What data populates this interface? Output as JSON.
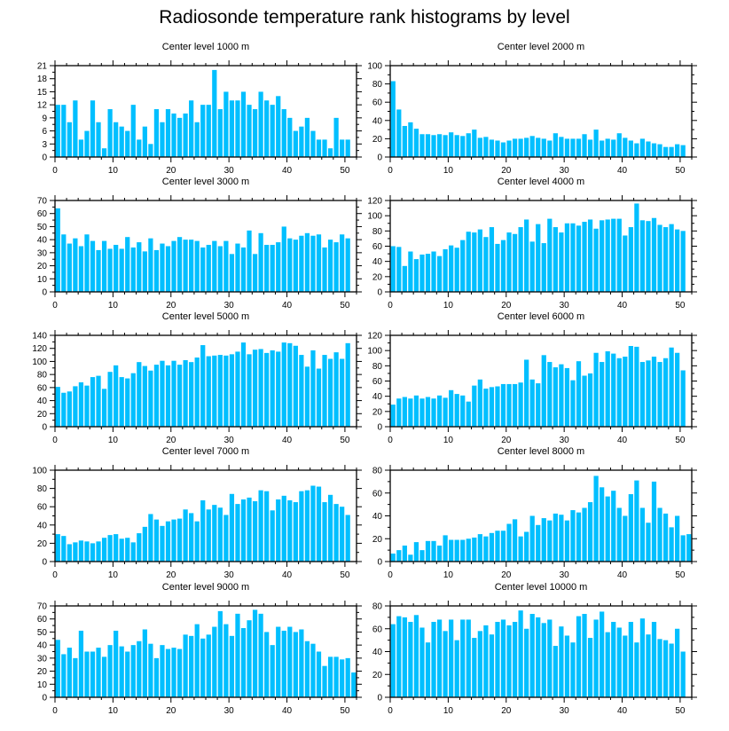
{
  "title": "Radiosonde temperature rank histograms by level",
  "bar_color": "#00bfff",
  "chart_data": [
    {
      "type": "bar",
      "title": "Center level 1000 m",
      "xlim": [
        0,
        52
      ],
      "ylim": [
        0,
        21
      ],
      "xticks": [
        0,
        10,
        20,
        30,
        40,
        50
      ],
      "yticks": [
        0,
        3,
        6,
        9,
        12,
        15,
        18,
        21
      ],
      "values": [
        12,
        12,
        8,
        13,
        4,
        6,
        13,
        8,
        2,
        11,
        8,
        7,
        6,
        12,
        4,
        7,
        3,
        11,
        8,
        11,
        10,
        9,
        10,
        13,
        8,
        12,
        12,
        20,
        11,
        15,
        13,
        13,
        15,
        12,
        11,
        15,
        13,
        12,
        14,
        11,
        9,
        6,
        7,
        9,
        6,
        4,
        4,
        2,
        9,
        4,
        4
      ]
    },
    {
      "type": "bar",
      "title": "Center level 2000 m",
      "xlim": [
        0,
        52
      ],
      "ylim": [
        0,
        100
      ],
      "xticks": [
        0,
        10,
        20,
        30,
        40,
        50
      ],
      "yticks": [
        0,
        20,
        40,
        60,
        80,
        100
      ],
      "values": [
        83,
        52,
        34,
        38,
        31,
        25,
        25,
        24,
        25,
        24,
        27,
        24,
        23,
        26,
        30,
        21,
        22,
        19,
        18,
        16,
        18,
        20,
        20,
        21,
        23,
        21,
        20,
        18,
        26,
        22,
        20,
        20,
        20,
        25,
        19,
        30,
        18,
        20,
        19,
        26,
        21,
        18,
        15,
        20,
        17,
        15,
        14,
        11,
        11,
        14,
        13
      ]
    },
    {
      "type": "bar",
      "title": "Center level 3000 m",
      "xlim": [
        0,
        52
      ],
      "ylim": [
        0,
        70
      ],
      "xticks": [
        0,
        10,
        20,
        30,
        40,
        50
      ],
      "yticks": [
        0,
        10,
        20,
        30,
        40,
        50,
        60,
        70
      ],
      "values": [
        64,
        44,
        37,
        41,
        35,
        44,
        39,
        32,
        39,
        33,
        36,
        33,
        42,
        34,
        38,
        31,
        41,
        32,
        37,
        35,
        39,
        42,
        40,
        40,
        39,
        34,
        36,
        39,
        35,
        39,
        29,
        37,
        34,
        47,
        29,
        45,
        36,
        36,
        38,
        50,
        41,
        40,
        43,
        45,
        43,
        44,
        34,
        40,
        38,
        44,
        41
      ]
    },
    {
      "type": "bar",
      "title": "Center level 4000 m",
      "xlim": [
        0,
        52
      ],
      "ylim": [
        0,
        120
      ],
      "xticks": [
        0,
        10,
        20,
        30,
        40,
        50
      ],
      "yticks": [
        0,
        20,
        40,
        60,
        80,
        100,
        120
      ],
      "values": [
        60,
        59,
        34,
        53,
        43,
        49,
        50,
        53,
        47,
        56,
        61,
        58,
        68,
        79,
        78,
        82,
        72,
        85,
        63,
        68,
        78,
        76,
        85,
        95,
        66,
        89,
        64,
        96,
        85,
        78,
        90,
        90,
        87,
        92,
        95,
        83,
        94,
        95,
        96,
        96,
        74,
        85,
        116,
        94,
        93,
        97,
        88,
        85,
        89,
        82,
        80
      ]
    },
    {
      "type": "bar",
      "title": "Center level 5000 m",
      "xlim": [
        0,
        52
      ],
      "ylim": [
        0,
        140
      ],
      "xticks": [
        0,
        10,
        20,
        30,
        40,
        50
      ],
      "yticks": [
        0,
        20,
        40,
        60,
        80,
        100,
        120,
        140
      ],
      "values": [
        61,
        52,
        54,
        62,
        68,
        63,
        76,
        78,
        58,
        84,
        94,
        76,
        74,
        82,
        99,
        93,
        86,
        95,
        101,
        94,
        101,
        95,
        102,
        99,
        106,
        125,
        108,
        109,
        110,
        109,
        111,
        115,
        129,
        111,
        118,
        119,
        113,
        117,
        115,
        129,
        128,
        124,
        110,
        92,
        117,
        89,
        110,
        104,
        114,
        104,
        128
      ]
    },
    {
      "type": "bar",
      "title": "Center level 6000 m",
      "xlim": [
        0,
        52
      ],
      "ylim": [
        0,
        120
      ],
      "xticks": [
        0,
        10,
        20,
        30,
        40,
        50
      ],
      "yticks": [
        0,
        20,
        40,
        60,
        80,
        100,
        120
      ],
      "values": [
        29,
        37,
        39,
        37,
        41,
        37,
        39,
        37,
        41,
        38,
        48,
        43,
        41,
        33,
        54,
        62,
        50,
        52,
        53,
        56,
        56,
        56,
        58,
        88,
        62,
        57,
        94,
        85,
        78,
        82,
        77,
        61,
        86,
        67,
        70,
        97,
        85,
        99,
        96,
        90,
        92,
        106,
        105,
        85,
        87,
        92,
        85,
        90,
        104,
        97,
        74
      ]
    },
    {
      "type": "bar",
      "title": "Center level 7000 m",
      "xlim": [
        0,
        52
      ],
      "ylim": [
        0,
        100
      ],
      "xticks": [
        0,
        10,
        20,
        30,
        40,
        50
      ],
      "yticks": [
        0,
        20,
        40,
        60,
        80,
        100
      ],
      "values": [
        30,
        28,
        19,
        21,
        23,
        22,
        20,
        22,
        26,
        29,
        30,
        25,
        26,
        21,
        31,
        38,
        52,
        46,
        39,
        44,
        46,
        47,
        57,
        53,
        44,
        67,
        57,
        62,
        59,
        51,
        74,
        63,
        68,
        70,
        66,
        78,
        77,
        56,
        68,
        72,
        67,
        65,
        77,
        78,
        83,
        82,
        65,
        73,
        63,
        60,
        51
      ]
    },
    {
      "type": "bar",
      "title": "Center level 8000 m",
      "xlim": [
        0,
        52
      ],
      "ylim": [
        0,
        80
      ],
      "xticks": [
        0,
        10,
        20,
        30,
        40,
        50
      ],
      "yticks": [
        0,
        20,
        40,
        60,
        80
      ],
      "values": [
        7,
        10,
        14,
        6,
        17,
        10,
        18,
        18,
        14,
        23,
        19,
        19,
        19,
        20,
        21,
        24,
        22,
        25,
        27,
        27,
        33,
        37,
        22,
        26,
        40,
        32,
        38,
        36,
        42,
        41,
        36,
        45,
        43,
        47,
        52,
        75,
        65,
        57,
        62,
        47,
        40,
        59,
        71,
        47,
        34,
        70,
        47,
        42,
        30,
        40,
        23,
        24
      ]
    },
    {
      "type": "bar",
      "title": "Center level 9000 m",
      "xlim": [
        0,
        52
      ],
      "ylim": [
        0,
        70
      ],
      "xticks": [
        0,
        10,
        20,
        30,
        40,
        50
      ],
      "yticks": [
        0,
        10,
        20,
        30,
        40,
        50,
        60,
        70
      ],
      "values": [
        44,
        33,
        38,
        30,
        51,
        35,
        35,
        38,
        31,
        40,
        51,
        39,
        35,
        40,
        43,
        52,
        41,
        30,
        40,
        37,
        38,
        37,
        48,
        47,
        56,
        45,
        48,
        54,
        66,
        56,
        47,
        64,
        53,
        59,
        67,
        64,
        50,
        40,
        54,
        51,
        54,
        50,
        52,
        43,
        41,
        35,
        24,
        31,
        31,
        29,
        30,
        19
      ]
    },
    {
      "type": "bar",
      "title": "Center level 10000 m",
      "xlim": [
        0,
        52
      ],
      "ylim": [
        0,
        80
      ],
      "xticks": [
        0,
        10,
        20,
        30,
        40,
        50
      ],
      "yticks": [
        0,
        20,
        40,
        60,
        80
      ],
      "values": [
        64,
        71,
        70,
        66,
        72,
        61,
        48,
        66,
        68,
        58,
        68,
        50,
        68,
        68,
        52,
        58,
        63,
        55,
        66,
        68,
        63,
        66,
        76,
        60,
        73,
        70,
        65,
        68,
        45,
        62,
        54,
        48,
        71,
        73,
        52,
        68,
        75,
        57,
        66,
        61,
        54,
        66,
        48,
        69,
        55,
        66,
        51,
        50,
        47,
        60,
        40
      ]
    }
  ]
}
